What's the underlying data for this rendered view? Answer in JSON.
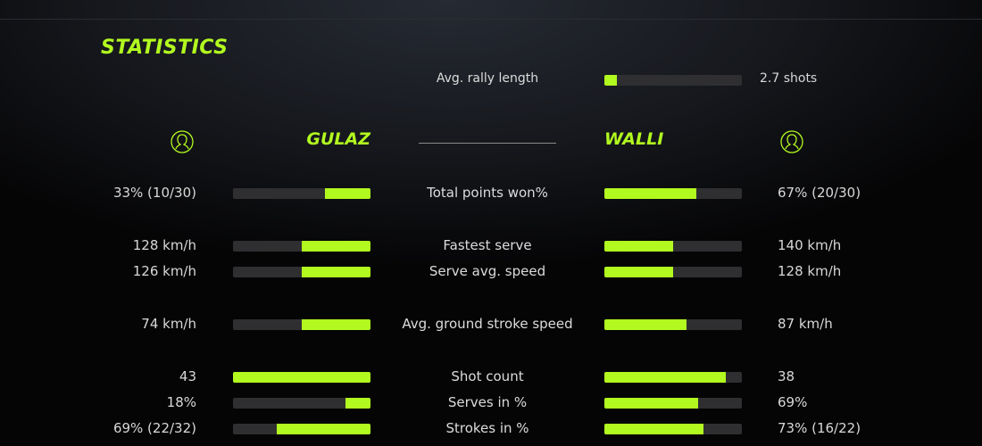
{
  "title": "STATISTICS",
  "rally": {
    "label": "Avg. rally length",
    "value": "2.7 shots",
    "fraction": 0.09
  },
  "players": {
    "left": {
      "name": "GULAZ",
      "icon": "user-circle-icon"
    },
    "right": {
      "name": "WALLI",
      "icon": "user-circle-icon"
    }
  },
  "accent": "#b2f91f",
  "stats": [
    {
      "label": "Total points won%",
      "left": "33% (10/30)",
      "right": "67% (20/30)",
      "lf": 0.33,
      "rf": 0.67
    },
    {
      "label": "Fastest serve",
      "left": "128 km/h",
      "right": "140 km/h",
      "lf": 0.5,
      "rf": 0.5
    },
    {
      "label": "Serve avg. speed",
      "left": "126 km/h",
      "right": "128 km/h",
      "lf": 0.5,
      "rf": 0.5
    },
    {
      "label": "Avg. ground stroke speed",
      "left": "74 km/h",
      "right": "87 km/h",
      "lf": 0.5,
      "rf": 0.6
    },
    {
      "label": "Shot count",
      "left": "43",
      "right": "38",
      "lf": 1.0,
      "rf": 0.88
    },
    {
      "label": "Serves in %",
      "left": "18%",
      "right": "69%",
      "lf": 0.18,
      "rf": 0.68
    },
    {
      "label": "Strokes in %",
      "left": "69% (22/32)",
      "right": "73% (16/22)",
      "lf": 0.68,
      "rf": 0.72
    }
  ]
}
